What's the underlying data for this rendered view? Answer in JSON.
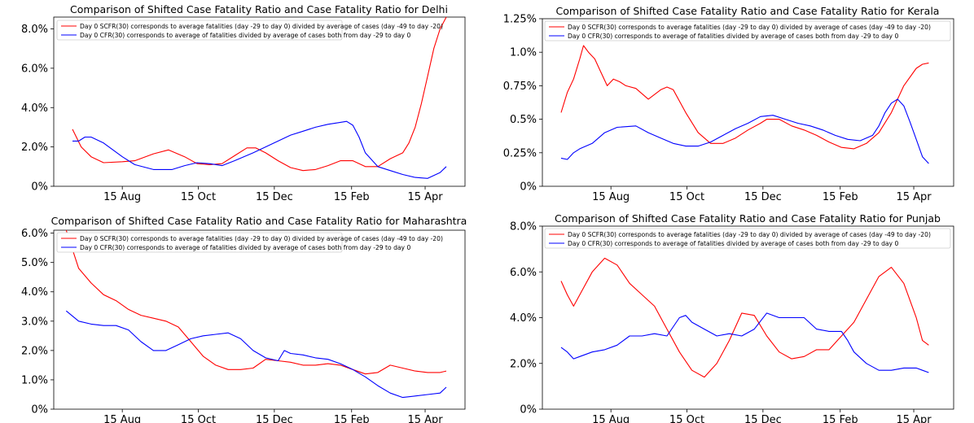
{
  "figure": {
    "series_names": [
      "Day 0 SCFR(30) corresponds to average fatalities (day -29 to day 0) divided by average of cases (day -49 to day -20)",
      "Day 0 CFR(30) corresponds to average of fatalities divided by average of cases both from day -29 to day 0"
    ],
    "colors": {
      "scfr": "#ff0000",
      "cfr": "#0000ff"
    }
  },
  "chart_data": [
    {
      "type": "line",
      "title": "Comparison of Shifted Case Fatality Ratio and Case Fatality Ratio for Delhi",
      "xlabel": "",
      "ylabel": "",
      "xlim": [
        0,
        330
      ],
      "ylim": [
        0,
        8.6
      ],
      "x_ticks": [
        {
          "x": 55,
          "label": "15 Aug"
        },
        {
          "x": 116,
          "label": "15 Oct"
        },
        {
          "x": 177,
          "label": "15 Dec"
        },
        {
          "x": 239,
          "label": "15 Feb"
        },
        {
          "x": 298,
          "label": "15 Apr"
        }
      ],
      "y_ticks": [
        {
          "v": 0,
          "label": "0%"
        },
        {
          "v": 2,
          "label": "2.0%"
        },
        {
          "v": 4,
          "label": "4.0%"
        },
        {
          "v": 6,
          "label": "6.0%"
        },
        {
          "v": 8,
          "label": "8.0%"
        }
      ],
      "legend": "top-left",
      "series": [
        {
          "name": "Day 0 SCFR(30)",
          "x": [
            15,
            22,
            30,
            40,
            55,
            65,
            80,
            92,
            105,
            115,
            125,
            135,
            145,
            155,
            162,
            170,
            180,
            190,
            200,
            210,
            220,
            230,
            240,
            250,
            260,
            270,
            280,
            285,
            290,
            295,
            300,
            305,
            310,
            315
          ],
          "values": [
            2.9,
            2.0,
            1.5,
            1.2,
            1.25,
            1.3,
            1.65,
            1.85,
            1.5,
            1.15,
            1.1,
            1.15,
            1.55,
            1.95,
            1.95,
            1.7,
            1.3,
            0.95,
            0.8,
            0.85,
            1.05,
            1.3,
            1.3,
            1.0,
            1.0,
            1.4,
            1.7,
            2.2,
            3.0,
            4.2,
            5.6,
            7.0,
            8.0,
            8.6
          ]
        },
        {
          "name": "Day 0 CFR(30)",
          "x": [
            15,
            20,
            25,
            30,
            40,
            55,
            65,
            80,
            95,
            105,
            115,
            125,
            135,
            145,
            160,
            175,
            190,
            200,
            210,
            220,
            230,
            235,
            240,
            245,
            250,
            260,
            270,
            280,
            290,
            300,
            310,
            315
          ],
          "values": [
            2.3,
            2.3,
            2.5,
            2.5,
            2.2,
            1.5,
            1.1,
            0.85,
            0.85,
            1.05,
            1.2,
            1.15,
            1.05,
            1.3,
            1.7,
            2.15,
            2.6,
            2.8,
            3.0,
            3.15,
            3.25,
            3.3,
            3.1,
            2.5,
            1.7,
            1.0,
            0.8,
            0.6,
            0.45,
            0.4,
            0.7,
            1.0
          ]
        }
      ]
    },
    {
      "type": "line",
      "title": "Comparison of Shifted Case Fatality Ratio and Case Fatality Ratio for Kerala",
      "xlabel": "",
      "ylabel": "",
      "xlim": [
        0,
        330
      ],
      "ylim": [
        0,
        1.25
      ],
      "x_ticks": [
        {
          "x": 55,
          "label": "15 Aug"
        },
        {
          "x": 116,
          "label": "15 Oct"
        },
        {
          "x": 177,
          "label": "15 Dec"
        },
        {
          "x": 239,
          "label": "15 Feb"
        },
        {
          "x": 298,
          "label": "15 Apr"
        }
      ],
      "y_ticks": [
        {
          "v": 0,
          "label": "0%"
        },
        {
          "v": 0.25,
          "label": "0.25%"
        },
        {
          "v": 0.5,
          "label": "0.5%"
        },
        {
          "v": 0.75,
          "label": "0.75%"
        },
        {
          "v": 1.0,
          "label": "1.0%"
        },
        {
          "v": 1.25,
          "label": "1.25%"
        }
      ],
      "legend": "top-right",
      "series": [
        {
          "name": "Day 0 SCFR(30)",
          "x": [
            15,
            20,
            25,
            30,
            33,
            37,
            42,
            47,
            52,
            57,
            62,
            67,
            75,
            85,
            95,
            100,
            105,
            115,
            125,
            135,
            145,
            155,
            165,
            175,
            180,
            190,
            200,
            210,
            220,
            230,
            240,
            250,
            260,
            270,
            280,
            290,
            300,
            305,
            310
          ],
          "values": [
            0.55,
            0.7,
            0.8,
            0.95,
            1.05,
            1.0,
            0.95,
            0.85,
            0.75,
            0.8,
            0.78,
            0.75,
            0.73,
            0.65,
            0.72,
            0.74,
            0.72,
            0.55,
            0.4,
            0.32,
            0.32,
            0.36,
            0.42,
            0.47,
            0.5,
            0.5,
            0.45,
            0.42,
            0.38,
            0.33,
            0.29,
            0.28,
            0.32,
            0.4,
            0.55,
            0.75,
            0.88,
            0.91,
            0.92
          ]
        },
        {
          "name": "Day 0 CFR(30)",
          "x": [
            15,
            20,
            25,
            30,
            40,
            50,
            60,
            75,
            85,
            95,
            105,
            115,
            125,
            135,
            145,
            155,
            165,
            175,
            185,
            195,
            205,
            215,
            225,
            235,
            245,
            255,
            265,
            270,
            275,
            280,
            285,
            290,
            295,
            300,
            305,
            310
          ],
          "values": [
            0.21,
            0.2,
            0.25,
            0.28,
            0.32,
            0.4,
            0.44,
            0.45,
            0.4,
            0.36,
            0.32,
            0.3,
            0.3,
            0.33,
            0.38,
            0.43,
            0.47,
            0.52,
            0.53,
            0.5,
            0.47,
            0.45,
            0.42,
            0.38,
            0.35,
            0.34,
            0.38,
            0.45,
            0.55,
            0.62,
            0.65,
            0.6,
            0.48,
            0.35,
            0.22,
            0.17
          ]
        }
      ]
    },
    {
      "type": "line",
      "title": "Comparison of Shifted Case Fatality Ratio and Case Fatality Ratio for Maharashtra",
      "xlabel": "",
      "ylabel": "",
      "xlim": [
        0,
        330
      ],
      "ylim": [
        0,
        6.1
      ],
      "x_ticks": [
        {
          "x": 55,
          "label": "15 Aug"
        },
        {
          "x": 116,
          "label": "15 Oct"
        },
        {
          "x": 177,
          "label": "15 Dec"
        },
        {
          "x": 239,
          "label": "15 Feb"
        },
        {
          "x": 298,
          "label": "15 Apr"
        }
      ],
      "y_ticks": [
        {
          "v": 0,
          "label": "0%"
        },
        {
          "v": 1,
          "label": "1.0%"
        },
        {
          "v": 2,
          "label": "2.0%"
        },
        {
          "v": 3,
          "label": "3.0%"
        },
        {
          "v": 4,
          "label": "4.0%"
        },
        {
          "v": 5,
          "label": "5.0%"
        },
        {
          "v": 6,
          "label": "6.0%"
        }
      ],
      "legend": "top-left",
      "series": [
        {
          "name": "Day 0 SCFR(30)",
          "x": [
            10,
            20,
            30,
            40,
            50,
            60,
            70,
            80,
            90,
            100,
            110,
            120,
            130,
            140,
            150,
            160,
            170,
            180,
            190,
            200,
            210,
            220,
            230,
            240,
            250,
            260,
            270,
            280,
            290,
            300,
            310,
            315
          ],
          "values": [
            6.1,
            4.8,
            4.3,
            3.9,
            3.7,
            3.4,
            3.2,
            3.1,
            3.0,
            2.8,
            2.3,
            1.8,
            1.5,
            1.35,
            1.35,
            1.4,
            1.7,
            1.65,
            1.6,
            1.5,
            1.5,
            1.55,
            1.5,
            1.35,
            1.2,
            1.25,
            1.5,
            1.4,
            1.3,
            1.25,
            1.25,
            1.3
          ]
        },
        {
          "name": "Day 0 CFR(30)",
          "x": [
            10,
            20,
            30,
            40,
            50,
            60,
            70,
            80,
            90,
            100,
            110,
            120,
            130,
            140,
            150,
            160,
            170,
            180,
            185,
            190,
            200,
            210,
            220,
            230,
            240,
            250,
            260,
            270,
            280,
            290,
            300,
            310,
            315
          ],
          "values": [
            3.35,
            3.0,
            2.9,
            2.85,
            2.85,
            2.7,
            2.3,
            2.0,
            2.0,
            2.2,
            2.4,
            2.5,
            2.55,
            2.6,
            2.4,
            2.0,
            1.75,
            1.65,
            2.0,
            1.9,
            1.85,
            1.75,
            1.7,
            1.55,
            1.35,
            1.1,
            0.8,
            0.55,
            0.4,
            0.45,
            0.5,
            0.55,
            0.75
          ]
        }
      ]
    },
    {
      "type": "line",
      "title": "Comparison of Shifted Case Fatality Ratio and Case Fatality Ratio for Punjab",
      "xlabel": "",
      "ylabel": "",
      "xlim": [
        0,
        330
      ],
      "ylim": [
        0,
        8.0
      ],
      "x_ticks": [
        {
          "x": 55,
          "label": "15 Aug"
        },
        {
          "x": 116,
          "label": "15 Oct"
        },
        {
          "x": 177,
          "label": "15 Dec"
        },
        {
          "x": 239,
          "label": "15 Feb"
        },
        {
          "x": 298,
          "label": "15 Apr"
        }
      ],
      "y_ticks": [
        {
          "v": 0,
          "label": "0%"
        },
        {
          "v": 2,
          "label": "2.0%"
        },
        {
          "v": 4,
          "label": "4.0%"
        },
        {
          "v": 6,
          "label": "6.0%"
        },
        {
          "v": 8,
          "label": "8.0%"
        }
      ],
      "legend": "top-right",
      "series": [
        {
          "name": "Day 0 SCFR(30)",
          "x": [
            15,
            20,
            25,
            30,
            40,
            50,
            60,
            70,
            80,
            90,
            100,
            110,
            120,
            130,
            140,
            150,
            160,
            170,
            180,
            190,
            200,
            210,
            220,
            230,
            240,
            250,
            260,
            270,
            280,
            290,
            300,
            305,
            310
          ],
          "values": [
            5.6,
            5.0,
            4.5,
            5.0,
            6.0,
            6.6,
            6.3,
            5.5,
            5.0,
            4.5,
            3.5,
            2.5,
            1.7,
            1.4,
            2.0,
            3.0,
            4.2,
            4.1,
            3.2,
            2.5,
            2.2,
            2.3,
            2.6,
            2.6,
            3.2,
            3.8,
            4.8,
            5.8,
            6.2,
            5.5,
            4.0,
            3.0,
            2.8
          ]
        },
        {
          "name": "Day 0 CFR(30)",
          "x": [
            15,
            20,
            25,
            30,
            40,
            50,
            60,
            70,
            80,
            90,
            100,
            110,
            115,
            120,
            130,
            140,
            150,
            160,
            170,
            180,
            190,
            200,
            210,
            220,
            230,
            240,
            245,
            250,
            260,
            270,
            280,
            290,
            300,
            305,
            310
          ],
          "values": [
            2.7,
            2.5,
            2.2,
            2.3,
            2.5,
            2.6,
            2.8,
            3.2,
            3.2,
            3.3,
            3.2,
            4.0,
            4.1,
            3.8,
            3.5,
            3.2,
            3.3,
            3.2,
            3.5,
            4.2,
            4.0,
            4.0,
            4.0,
            3.5,
            3.4,
            3.4,
            3.0,
            2.5,
            2.0,
            1.7,
            1.7,
            1.8,
            1.8,
            1.7,
            1.6
          ]
        }
      ]
    }
  ]
}
